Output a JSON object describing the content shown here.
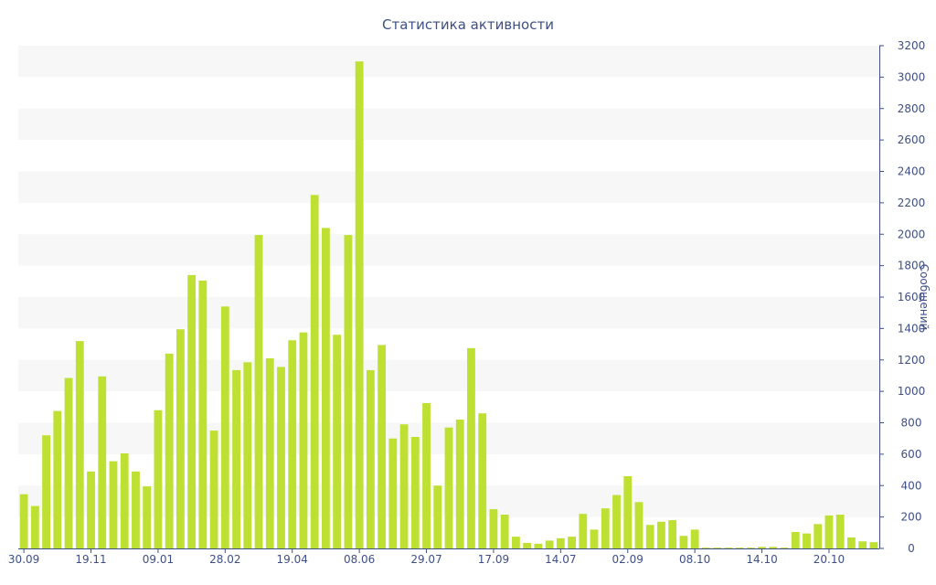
{
  "chart_data": {
    "type": "bar",
    "title": "Статистика активности",
    "ylabel": "Сообщений",
    "xlabel": "",
    "ylim": [
      0,
      3200
    ],
    "yticks": [
      0,
      200,
      400,
      600,
      800,
      1000,
      1200,
      1400,
      1600,
      1800,
      2000,
      2200,
      2400,
      2600,
      2800,
      3000,
      3200
    ],
    "xtick_labels": [
      {
        "index": 0,
        "label": "30.09"
      },
      {
        "index": 6,
        "label": "19.11"
      },
      {
        "index": 12,
        "label": "09.01"
      },
      {
        "index": 18,
        "label": "28.02"
      },
      {
        "index": 24,
        "label": "19.04"
      },
      {
        "index": 30,
        "label": "08.06"
      },
      {
        "index": 36,
        "label": "29.07"
      },
      {
        "index": 42,
        "label": "17.09"
      },
      {
        "index": 48,
        "label": "14.07"
      },
      {
        "index": 54,
        "label": "02.09"
      },
      {
        "index": 60,
        "label": "08.10"
      },
      {
        "index": 66,
        "label": "14.10"
      },
      {
        "index": 72,
        "label": "20.10"
      }
    ],
    "values": [
      345,
      270,
      720,
      875,
      1085,
      1320,
      490,
      1095,
      555,
      605,
      490,
      395,
      880,
      1240,
      1395,
      1740,
      1705,
      750,
      1540,
      1135,
      1185,
      1995,
      1210,
      1155,
      1325,
      1375,
      2250,
      2040,
      1360,
      1995,
      3100,
      1135,
      1295,
      700,
      790,
      710,
      925,
      400,
      770,
      820,
      1275,
      860,
      250,
      215,
      75,
      35,
      30,
      50,
      65,
      75,
      220,
      120,
      255,
      340,
      460,
      295,
      150,
      170,
      180,
      80,
      120,
      5,
      5,
      5,
      5,
      5,
      10,
      10,
      5,
      105,
      95,
      155,
      210,
      215,
      70,
      45,
      40
    ],
    "grid": "horizontal-bands",
    "legend": "none",
    "colors": {
      "bar": "#bde033",
      "band": "#f7f7f7",
      "axis": "#3e4f86",
      "text": "#3e4f86"
    }
  }
}
